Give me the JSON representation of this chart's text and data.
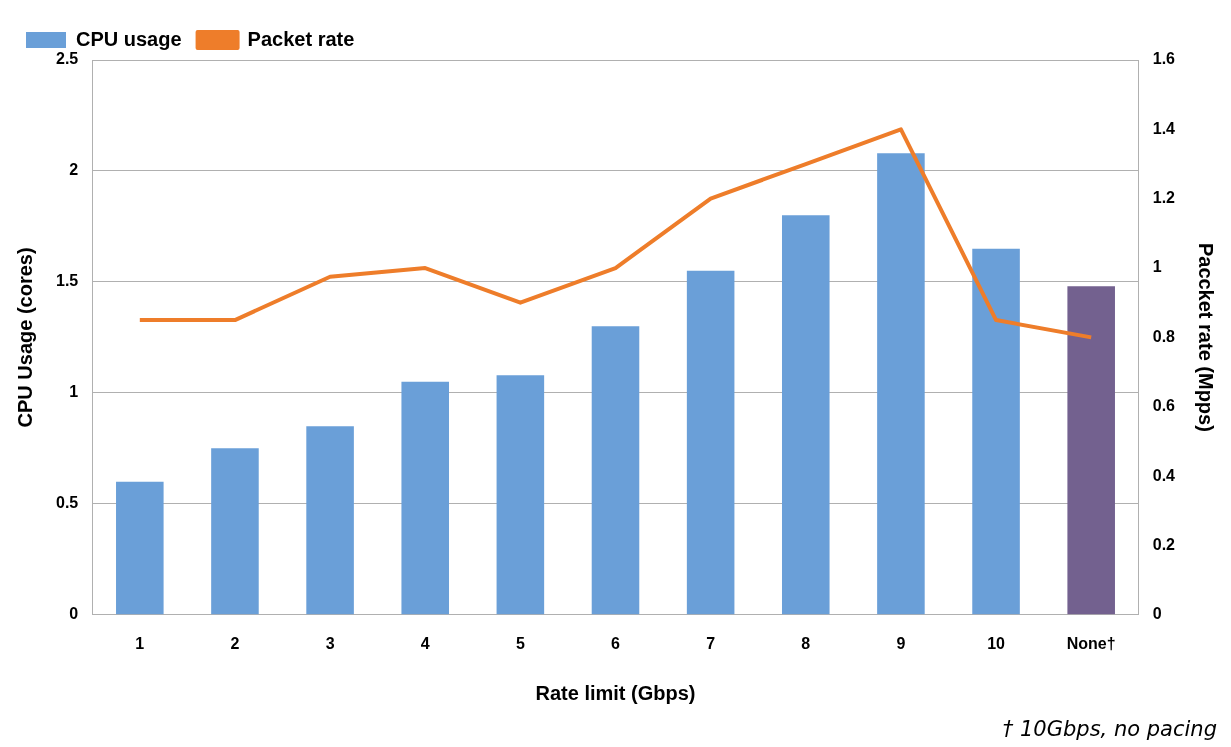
{
  "chart_data": {
    "type": "bar",
    "xlabel": "Rate limit (Gbps)",
    "ylabel": "CPU Usage (cores)",
    "y2label": "Paccket rate (Mpps)",
    "categories": [
      "1",
      "2",
      "3",
      "4",
      "5",
      "6",
      "7",
      "8",
      "9",
      "10",
      "None†"
    ],
    "series": [
      {
        "name": "CPU usage",
        "colors": [
          "#6a9fd8",
          "#6a9fd8",
          "#6a9fd8",
          "#6a9fd8",
          "#6a9fd8",
          "#6a9fd8",
          "#6a9fd8",
          "#6a9fd8",
          "#6a9fd8",
          "#6a9fd8",
          "#73618f"
        ],
        "values": [
          0.6,
          0.75,
          0.85,
          1.05,
          1.08,
          1.3,
          1.55,
          1.8,
          2.08,
          1.65,
          1.48
        ]
      },
      {
        "name": "Packet rate",
        "type": "line",
        "axis": "y2",
        "color": "#ee7d2a",
        "values": [
          0.85,
          0.85,
          0.975,
          1.0,
          0.9,
          1.0,
          1.2,
          1.3,
          1.4,
          0.85,
          0.8
        ]
      }
    ],
    "ylim": [
      0,
      2.5
    ],
    "yticks": [
      0,
      0.5,
      1,
      1.5,
      2,
      2.5
    ],
    "y2lim": [
      0,
      1.6
    ],
    "y2ticks": [
      0,
      0.2,
      0.4,
      0.6,
      0.8,
      1,
      1.2,
      1.4,
      1.6
    ],
    "grid": "y",
    "legend": "top left",
    "marker": "none",
    "annotations": [
      "† 10Gbps, no pacing"
    ]
  }
}
